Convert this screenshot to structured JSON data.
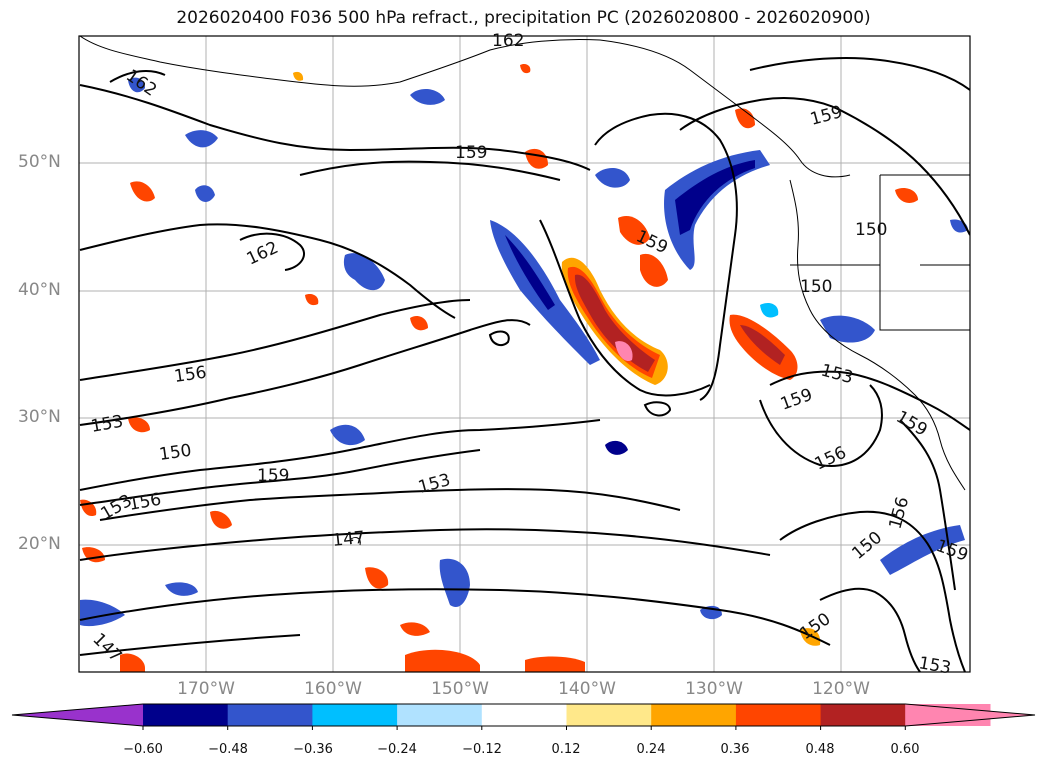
{
  "title": "2026020400 F036 500 hPa refract., precipitation PC (2026020800 - 2026020900)",
  "lat_labels": [
    "50°N",
    "40°N",
    "30°N",
    "20°N"
  ],
  "lon_labels": [
    "170°W",
    "160°W",
    "150°W",
    "140°W",
    "130°W",
    "120°W"
  ],
  "contour_labels": [
    "162",
    "162",
    "159",
    "159",
    "159",
    "162",
    "159",
    "150",
    "150",
    "156",
    "153",
    "150",
    "159",
    "153",
    "159",
    "156",
    "153",
    "156",
    "147",
    "156",
    "150",
    "159",
    "147",
    "150",
    "153",
    "153"
  ],
  "colorbar": {
    "ticks": [
      "−0.60",
      "−0.48",
      "−0.36",
      "−0.24",
      "−0.12",
      "0.12",
      "0.24",
      "0.36",
      "0.48",
      "0.60"
    ],
    "colors": [
      "#9932cc",
      "#00008b",
      "#3355cc",
      "#00bfff",
      "#b0e2ff",
      "#ffffff",
      "#ffe88a",
      "#ffa500",
      "#ff4500",
      "#b22222",
      "#ff85b0",
      "#ff85b0"
    ]
  }
}
